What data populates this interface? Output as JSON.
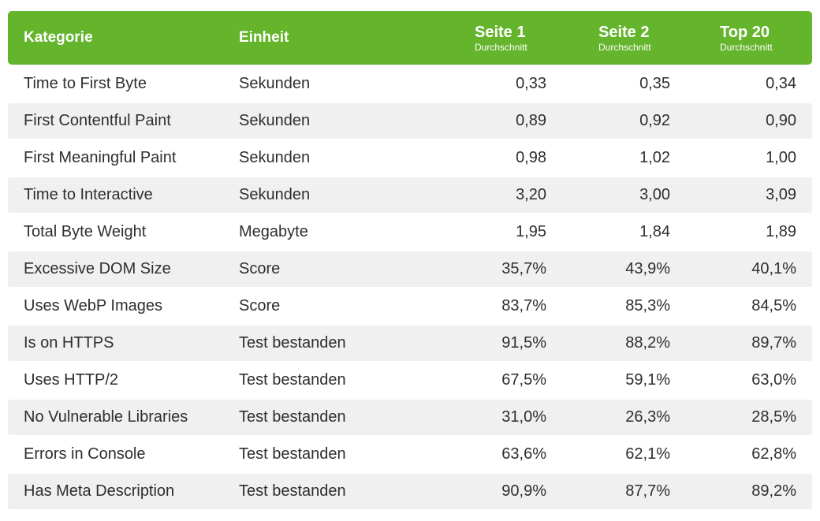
{
  "chart_data": {
    "type": "table",
    "columns": [
      {
        "label": "Kategorie",
        "sub": ""
      },
      {
        "label": "Einheit",
        "sub": ""
      },
      {
        "label": "Seite 1",
        "sub": "Durchschnitt"
      },
      {
        "label": "Seite 2",
        "sub": "Durchschnitt"
      },
      {
        "label": "Top 20",
        "sub": "Durchschnitt"
      }
    ],
    "rows": [
      {
        "kategorie": "Time to First Byte",
        "einheit": "Sekunden",
        "seite1": "0,33",
        "seite2": "0,35",
        "top20": "0,34"
      },
      {
        "kategorie": "First Contentful Paint",
        "einheit": "Sekunden",
        "seite1": "0,89",
        "seite2": "0,92",
        "top20": "0,90"
      },
      {
        "kategorie": "First Meaningful Paint",
        "einheit": "Sekunden",
        "seite1": "0,98",
        "seite2": "1,02",
        "top20": "1,00"
      },
      {
        "kategorie": "Time to Interactive",
        "einheit": "Sekunden",
        "seite1": "3,20",
        "seite2": "3,00",
        "top20": "3,09"
      },
      {
        "kategorie": "Total Byte Weight",
        "einheit": "Megabyte",
        "seite1": "1,95",
        "seite2": "1,84",
        "top20": "1,89"
      },
      {
        "kategorie": "Excessive DOM Size",
        "einheit": "Score",
        "seite1": "35,7%",
        "seite2": "43,9%",
        "top20": "40,1%"
      },
      {
        "kategorie": "Uses WebP Images",
        "einheit": "Score",
        "seite1": "83,7%",
        "seite2": "85,3%",
        "top20": "84,5%"
      },
      {
        "kategorie": "Is on HTTPS",
        "einheit": "Test bestanden",
        "seite1": "91,5%",
        "seite2": "88,2%",
        "top20": "89,7%"
      },
      {
        "kategorie": "Uses HTTP/2",
        "einheit": "Test bestanden",
        "seite1": "67,5%",
        "seite2": "59,1%",
        "top20": "63,0%"
      },
      {
        "kategorie": "No Vulnerable Libraries",
        "einheit": "Test bestanden",
        "seite1": "31,0%",
        "seite2": "26,3%",
        "top20": "28,5%"
      },
      {
        "kategorie": "Errors in Console",
        "einheit": "Test bestanden",
        "seite1": "63,6%",
        "seite2": "62,1%",
        "top20": "62,8%"
      },
      {
        "kategorie": "Has Meta Description",
        "einheit": "Test bestanden",
        "seite1": "90,9%",
        "seite2": "87,7%",
        "top20": "89,2%"
      }
    ]
  },
  "colors": {
    "header_bg": "#64b42c",
    "header_text": "#ffffff",
    "row_alt_bg": "#f0f0f0",
    "text": "#2e2e2e"
  }
}
